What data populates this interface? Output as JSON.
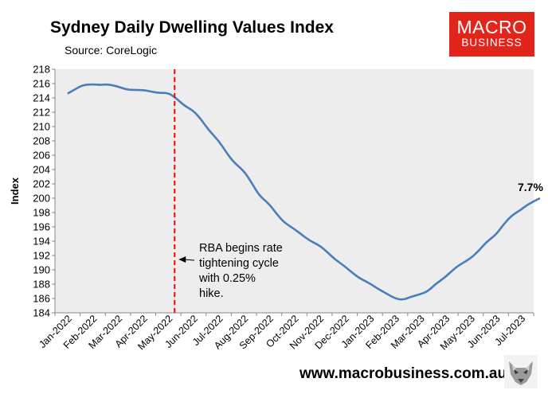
{
  "title": "Sydney Daily Dwelling Values Index",
  "subtitle": "Source: CoreLogic",
  "logo": {
    "line1": "MACRO",
    "line2": "BUSINESS"
  },
  "footer": {
    "url": "www.macrobusiness.com.au"
  },
  "chart_data": {
    "type": "line",
    "title": "Sydney Daily Dwelling Values Index",
    "subtitle": "Source: CoreLogic",
    "ylabel": "Index",
    "xlabel": "",
    "ylim": [
      184,
      218
    ],
    "yticks": [
      184,
      186,
      188,
      190,
      192,
      194,
      196,
      198,
      200,
      202,
      204,
      206,
      208,
      210,
      212,
      214,
      216,
      218
    ],
    "grid": false,
    "plot_background": "#ededed",
    "categories": [
      "Jan-2022",
      "Feb-2022",
      "Mar-2022",
      "Apr-2022",
      "May-2022",
      "Jun-2022",
      "Jul-2022",
      "Aug-2022",
      "Sep-2022",
      "Oct-2022",
      "Nov-2022",
      "Dec-2022",
      "Jan-2023",
      "Feb-2023",
      "Mar-2023",
      "Apr-2023",
      "May-2023",
      "Jun-2023",
      "Jul-2023"
    ],
    "series": [
      {
        "color": "#4a7ebb",
        "x": [
          0,
          0.3,
          0.6,
          1.0,
          1.3,
          1.6,
          2.0,
          2.3,
          2.6,
          3.0,
          3.3,
          3.6,
          4.0,
          4.3,
          4.6,
          5.0,
          5.3,
          5.6,
          6.0,
          6.3,
          6.6,
          7.0,
          7.3,
          7.6,
          8.0,
          8.3,
          8.6,
          9.0,
          9.3,
          9.6,
          10.0,
          10.3,
          10.6,
          11.0,
          11.3,
          11.6,
          12.0,
          12.3,
          12.6,
          13.0,
          13.3,
          13.6,
          14.0,
          14.3,
          14.6,
          15.0,
          15.3,
          15.6,
          16.0,
          16.3,
          16.6,
          17.0,
          17.3,
          17.6,
          18.0,
          18.3,
          18.75
        ],
        "values": [
          214.6,
          215.2,
          215.8,
          215.9,
          215.8,
          215.9,
          215.6,
          215.2,
          215.1,
          215.1,
          214.9,
          214.7,
          214.7,
          214.0,
          213.0,
          212.2,
          211.0,
          209.5,
          208.0,
          206.4,
          205.0,
          203.8,
          202.2,
          200.4,
          199.2,
          197.8,
          196.6,
          195.7,
          194.9,
          194.1,
          193.4,
          192.5,
          191.5,
          190.5,
          189.6,
          188.8,
          188.1,
          187.4,
          186.8,
          186.0,
          185.8,
          186.2,
          186.6,
          187.0,
          188.0,
          189.0,
          190.0,
          190.8,
          191.6,
          192.6,
          193.8,
          194.9,
          196.3,
          197.5,
          198.4,
          199.2,
          200.0
        ]
      }
    ],
    "annotations": [
      {
        "id": "rba",
        "text": [
          "RBA begins rate",
          "tightening cycle",
          "with 0.25%",
          "hike."
        ],
        "x_line": 4.25
      },
      {
        "id": "end",
        "text": "7.7%"
      }
    ]
  }
}
